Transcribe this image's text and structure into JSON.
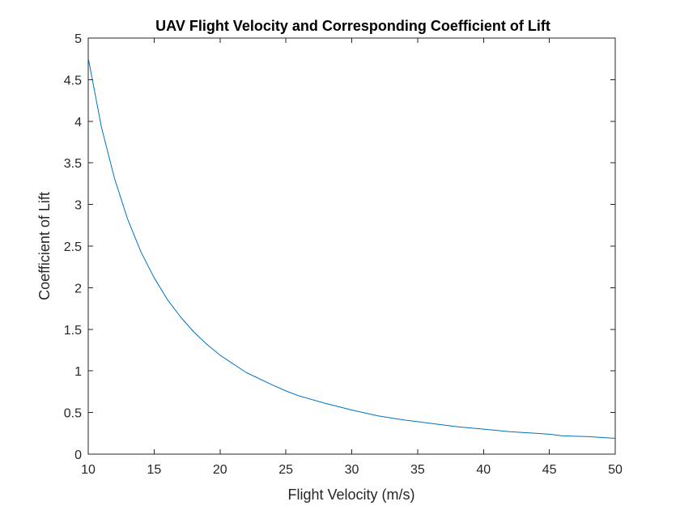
{
  "chart_data": {
    "type": "line",
    "title": "UAV Flight Velocity and Corresponding Coefficient of Lift",
    "xlabel": "Flight Velocity (m/s)",
    "ylabel": "Coefficient of Lift",
    "xlim": [
      10,
      50
    ],
    "ylim": [
      0,
      5
    ],
    "xticks": [
      "10",
      "15",
      "20",
      "25",
      "30",
      "35",
      "40",
      "45",
      "50"
    ],
    "yticks": [
      "0",
      "0.5",
      "1",
      "1.5",
      "2",
      "2.5",
      "3",
      "3.5",
      "4",
      "4.5",
      "5"
    ],
    "grid": false,
    "legend": "none",
    "series": [
      {
        "color": "#0072BD",
        "x": [
          10,
          11,
          12,
          13,
          14,
          15,
          16,
          17,
          18,
          19,
          20,
          22,
          24,
          25,
          26,
          28,
          30,
          32,
          34,
          35,
          36,
          38,
          40,
          42,
          44,
          45,
          46,
          48,
          50
        ],
        "y": [
          4.76,
          3.93,
          3.31,
          2.82,
          2.43,
          2.12,
          1.86,
          1.65,
          1.47,
          1.32,
          1.19,
          0.98,
          0.83,
          0.76,
          0.7,
          0.61,
          0.53,
          0.46,
          0.41,
          0.39,
          0.37,
          0.33,
          0.3,
          0.27,
          0.25,
          0.24,
          0.22,
          0.21,
          0.19
        ]
      }
    ]
  }
}
